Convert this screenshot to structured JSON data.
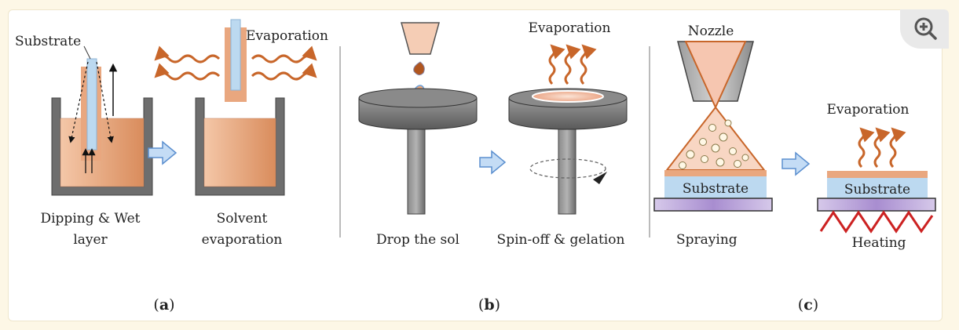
{
  "panel_a": {
    "substrate_label": "Substrate",
    "evaporation_label": "Evaporation",
    "step1_line1": "Dipping & Wet",
    "step1_line2": "layer",
    "step2_line1": "Solvent",
    "step2_line2": "evaporation",
    "caption_open": "(",
    "caption_letter": "a",
    "caption_close": ")"
  },
  "panel_b": {
    "evaporation_label": "Evaporation",
    "step1_label": "Drop the sol",
    "step2_label": "Spin-off & gelation",
    "caption_open": "(",
    "caption_letter": "b",
    "caption_close": ")"
  },
  "panel_c": {
    "nozzle_label": "Nozzle",
    "substrate_label_spray": "Substrate",
    "spraying_label": "Spraying",
    "evaporation_label": "Evaporation",
    "substrate_label_heat": "Substrate",
    "heating_label": "Heating",
    "caption_open": "(",
    "caption_letter": "c",
    "caption_close": ")"
  },
  "toolbar": {
    "zoom_icon": "zoom-in-icon"
  },
  "colors": {
    "sol": "#e9a77f",
    "substrate": "#bcd9f0",
    "container": "#6e6e6e",
    "wave": "#c8662a",
    "arrow_fill": "#c4dcf5",
    "arrow_stroke": "#5b8fcf",
    "heater": "#cc2222",
    "hotplate": "#c9b6e0"
  }
}
